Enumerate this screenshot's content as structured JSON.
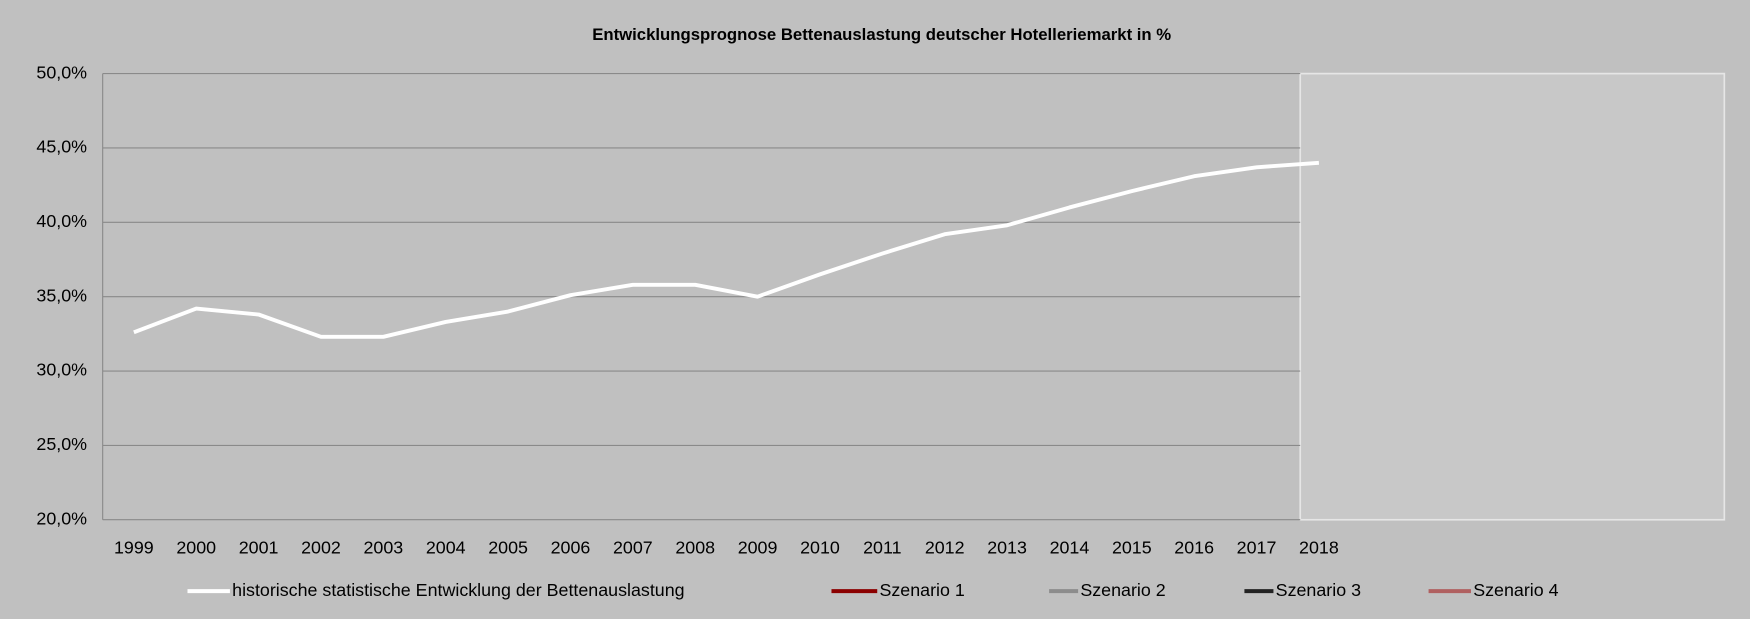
{
  "chart_data": {
    "type": "line",
    "title": "Entwicklungsprognose  Bettenauslastung  deutscher  Hotelleriemarkt in %",
    "categories": [
      "1999",
      "2000",
      "2001",
      "2002",
      "2003",
      "2004",
      "2005",
      "2006",
      "2007",
      "2008",
      "2009",
      "2010",
      "2011",
      "2012",
      "2013",
      "2014",
      "2015",
      "2016",
      "2017",
      "2018",
      null,
      null,
      null,
      null,
      null,
      null
    ],
    "series": [
      {
        "name": "historische statistische Entwicklung der Bettenauslastung",
        "color": "#ffffff",
        "values": [
          32.6,
          34.2,
          33.8,
          32.3,
          32.3,
          33.3,
          34.0,
          35.1,
          35.8,
          35.8,
          35.0,
          36.5,
          37.9,
          39.2,
          39.8,
          41.0,
          42.1,
          43.1,
          43.7,
          44.0,
          null,
          null,
          null,
          null,
          null,
          null
        ]
      },
      {
        "name": "Szenario 1",
        "color": "#8b0000",
        "values": [
          null,
          null,
          null,
          null,
          null,
          null,
          null,
          null,
          null,
          null,
          null,
          null,
          null,
          null,
          null,
          null,
          null,
          null,
          null,
          null,
          null,
          null,
          null,
          null,
          null,
          null
        ]
      },
      {
        "name": "Szenario 2",
        "color": "#8c8c8c",
        "values": [
          null,
          null,
          null,
          null,
          null,
          null,
          null,
          null,
          null,
          null,
          null,
          null,
          null,
          null,
          null,
          null,
          null,
          null,
          null,
          null,
          null,
          null,
          null,
          null,
          null,
          null
        ]
      },
      {
        "name": "Szenario 3",
        "color": "#222222",
        "values": [
          null,
          null,
          null,
          null,
          null,
          null,
          null,
          null,
          null,
          null,
          null,
          null,
          null,
          null,
          null,
          null,
          null,
          null,
          null,
          null,
          null,
          null,
          null,
          null,
          null,
          null
        ]
      },
      {
        "name": "Szenario 4",
        "color": "#b06060",
        "values": [
          null,
          null,
          null,
          null,
          null,
          null,
          null,
          null,
          null,
          null,
          null,
          null,
          null,
          null,
          null,
          null,
          null,
          null,
          null,
          null,
          null,
          null,
          null,
          null,
          null,
          null
        ]
      }
    ],
    "ylim": [
      20,
      50
    ],
    "yticks": [
      {
        "value": 20,
        "label": "20,0%"
      },
      {
        "value": 25,
        "label": "25,0%"
      },
      {
        "value": 30,
        "label": "30,0%"
      },
      {
        "value": 35,
        "label": "35,0%"
      },
      {
        "value": 40,
        "label": "40,0%"
      },
      {
        "value": 45,
        "label": "45,0%"
      },
      {
        "value": 50,
        "label": "50,0%"
      }
    ],
    "grid": true,
    "legend": "bottom"
  }
}
